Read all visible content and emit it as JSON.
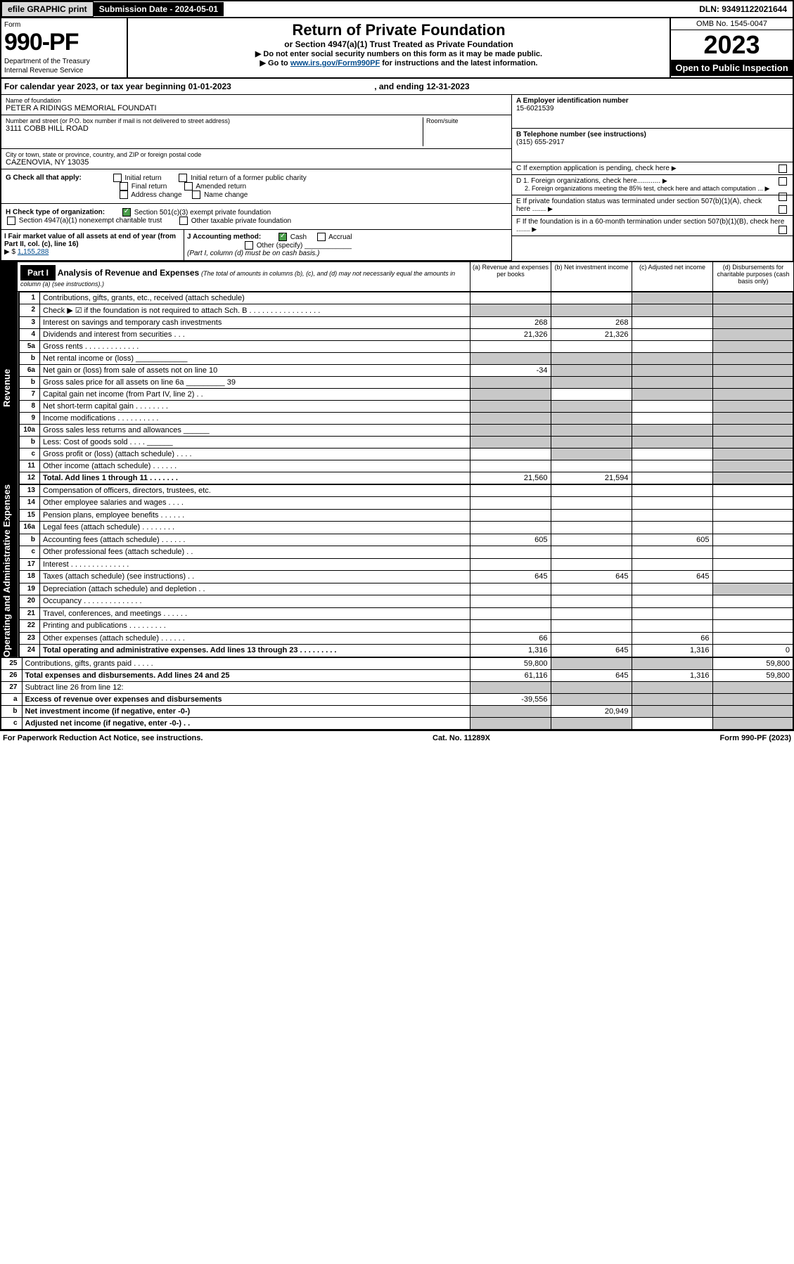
{
  "topbar": {
    "efile": "efile GRAPHIC print",
    "submission": "Submission Date - 2024-05-01",
    "dln": "DLN: 93491122021644"
  },
  "header": {
    "form_word": "Form",
    "form_number": "990-PF",
    "dept1": "Department of the Treasury",
    "dept2": "Internal Revenue Service",
    "title": "Return of Private Foundation",
    "subtitle": "or Section 4947(a)(1) Trust Treated as Private Foundation",
    "instr1": "▶ Do not enter social security numbers on this form as it may be made public.",
    "instr2_pre": "▶ Go to ",
    "instr2_link": "www.irs.gov/Form990PF",
    "instr2_post": " for instructions and the latest information.",
    "omb": "OMB No. 1545-0047",
    "year": "2023",
    "open": "Open to Public Inspection"
  },
  "calyear": {
    "text_pre": "For calendar year 2023, or tax year beginning ",
    "begin": "01-01-2023",
    "text_mid": ", and ending ",
    "end": "12-31-2023"
  },
  "name_block": {
    "lbl": "Name of foundation",
    "val": "PETER A RIDINGS MEMORIAL FOUNDATI"
  },
  "address_block": {
    "lbl": "Number and street (or P.O. box number if mail is not delivered to street address)",
    "val": "3111 COBB HILL ROAD",
    "room_lbl": "Room/suite"
  },
  "city_block": {
    "lbl": "City or town, state or province, country, and ZIP or foreign postal code",
    "val": "CAZENOVIA, NY  13035"
  },
  "ein": {
    "lbl": "A Employer identification number",
    "val": "15-6021539"
  },
  "phone": {
    "lbl": "B Telephone number (see instructions)",
    "val": "(315) 655-2917"
  },
  "c_line": "C If exemption application is pending, check here",
  "d_lines": {
    "d1": "D 1. Foreign organizations, check here............",
    "d2": "2. Foreign organizations meeting the 85% test, check here and attach computation ..."
  },
  "e_line": "E If private foundation status was terminated under section 507(b)(1)(A), check here .......",
  "f_line": "F If the foundation is in a 60-month termination under section 507(b)(1)(B), check here .......",
  "g_line": {
    "label": "G Check all that apply:",
    "opts": [
      "Initial return",
      "Initial return of a former public charity",
      "Final return",
      "Amended return",
      "Address change",
      "Name change"
    ]
  },
  "h_line": {
    "label": "H Check type of organization:",
    "opt1": "Section 501(c)(3) exempt private foundation",
    "opt2": "Section 4947(a)(1) nonexempt charitable trust",
    "opt3": "Other taxable private foundation"
  },
  "i_line": {
    "label": "I Fair market value of all assets at end of year (from Part II, col. (c), line 16)",
    "arrow": "▶ $",
    "val": "1,155,288"
  },
  "j_line": {
    "label": "J Accounting method:",
    "opt1": "Cash",
    "opt2": "Accrual",
    "opt3": "Other (specify)",
    "note": "(Part I, column (d) must be on cash basis.)"
  },
  "part1": {
    "hdr": "Part I",
    "title": "Analysis of Revenue and Expenses",
    "title_note": "(The total of amounts in columns (b), (c), and (d) may not necessarily equal the amounts in column (a) (see instructions).)",
    "col_a": "(a) Revenue and expenses per books",
    "col_b": "(b) Net investment income",
    "col_c": "(c) Adjusted net income",
    "col_d": "(d) Disbursements for charitable purposes (cash basis only)"
  },
  "sidelabels": {
    "revenue": "Revenue",
    "expenses": "Operating and Administrative Expenses"
  },
  "rows": [
    {
      "n": "1",
      "t": "Contributions, gifts, grants, etc., received (attach schedule)",
      "a": "",
      "b": "",
      "c": "shade",
      "d": "shade"
    },
    {
      "n": "2",
      "t": "Check ▶ ☑ if the foundation is not required to attach Sch. B  . . . . . . . . . . . . . . . . .",
      "a": "shade",
      "b": "shade",
      "c": "shade",
      "d": "shade",
      "bold": false
    },
    {
      "n": "3",
      "t": "Interest on savings and temporary cash investments",
      "a": "268",
      "b": "268",
      "c": "",
      "d": "shade"
    },
    {
      "n": "4",
      "t": "Dividends and interest from securities  . . .",
      "a": "21,326",
      "b": "21,326",
      "c": "",
      "d": "shade"
    },
    {
      "n": "5a",
      "t": "Gross rents  . . . . . . . . . . . . .",
      "a": "",
      "b": "",
      "c": "",
      "d": "shade"
    },
    {
      "n": "b",
      "t": "Net rental income or (loss) ____________",
      "a": "shade",
      "b": "shade",
      "c": "shade",
      "d": "shade"
    },
    {
      "n": "6a",
      "t": "Net gain or (loss) from sale of assets not on line 10",
      "a": "-34",
      "b": "shade",
      "c": "shade",
      "d": "shade"
    },
    {
      "n": "b",
      "t": "Gross sales price for all assets on line 6a _________ 39",
      "a": "shade",
      "b": "shade",
      "c": "shade",
      "d": "shade"
    },
    {
      "n": "7",
      "t": "Capital gain net income (from Part IV, line 2)  . .",
      "a": "shade",
      "b": "",
      "c": "shade",
      "d": "shade"
    },
    {
      "n": "8",
      "t": "Net short-term capital gain . . . . . . . .",
      "a": "shade",
      "b": "shade",
      "c": "",
      "d": "shade"
    },
    {
      "n": "9",
      "t": "Income modifications . . . . . . . . . .",
      "a": "shade",
      "b": "shade",
      "c": "",
      "d": "shade"
    },
    {
      "n": "10a",
      "t": "Gross sales less returns and allowances ______",
      "a": "shade",
      "b": "shade",
      "c": "shade",
      "d": "shade"
    },
    {
      "n": "b",
      "t": "Less: Cost of goods sold   . . . . ______",
      "a": "shade",
      "b": "shade",
      "c": "shade",
      "d": "shade"
    },
    {
      "n": "c",
      "t": "Gross profit or (loss) (attach schedule)   . . . .",
      "a": "",
      "b": "shade",
      "c": "",
      "d": "shade"
    },
    {
      "n": "11",
      "t": "Other income (attach schedule)   . . . . . .",
      "a": "",
      "b": "",
      "c": "",
      "d": "shade"
    },
    {
      "n": "12",
      "t": "Total. Add lines 1 through 11  . . . . . . .",
      "a": "21,560",
      "b": "21,594",
      "c": "",
      "d": "shade",
      "bold": true
    },
    {
      "n": "13",
      "t": "Compensation of officers, directors, trustees, etc.",
      "a": "",
      "b": "",
      "c": "",
      "d": ""
    },
    {
      "n": "14",
      "t": "Other employee salaries and wages   . . . .",
      "a": "",
      "b": "",
      "c": "",
      "d": ""
    },
    {
      "n": "15",
      "t": "Pension plans, employee benefits . . . . . .",
      "a": "",
      "b": "",
      "c": "",
      "d": ""
    },
    {
      "n": "16a",
      "t": "Legal fees (attach schedule) . . . . . . . .",
      "a": "",
      "b": "",
      "c": "",
      "d": ""
    },
    {
      "n": "b",
      "t": "Accounting fees (attach schedule) . . . . . .",
      "a": "605",
      "b": "",
      "c": "605",
      "d": ""
    },
    {
      "n": "c",
      "t": "Other professional fees (attach schedule)   . .",
      "a": "",
      "b": "",
      "c": "",
      "d": ""
    },
    {
      "n": "17",
      "t": "Interest . . . . . . . . . . . . . .",
      "a": "",
      "b": "",
      "c": "",
      "d": ""
    },
    {
      "n": "18",
      "t": "Taxes (attach schedule) (see instructions)   . .",
      "a": "645",
      "b": "645",
      "c": "645",
      "d": ""
    },
    {
      "n": "19",
      "t": "Depreciation (attach schedule) and depletion   . .",
      "a": "",
      "b": "",
      "c": "",
      "d": "shade"
    },
    {
      "n": "20",
      "t": "Occupancy . . . . . . . . . . . . . .",
      "a": "",
      "b": "",
      "c": "",
      "d": ""
    },
    {
      "n": "21",
      "t": "Travel, conferences, and meetings . . . . . .",
      "a": "",
      "b": "",
      "c": "",
      "d": ""
    },
    {
      "n": "22",
      "t": "Printing and publications . . . . . . . . .",
      "a": "",
      "b": "",
      "c": "",
      "d": ""
    },
    {
      "n": "23",
      "t": "Other expenses (attach schedule) . . . . . .",
      "a": "66",
      "b": "",
      "c": "66",
      "d": ""
    },
    {
      "n": "24",
      "t": "Total operating and administrative expenses. Add lines 13 through 23  . . . . . . . . .",
      "a": "1,316",
      "b": "645",
      "c": "1,316",
      "d": "0",
      "bold": true
    },
    {
      "n": "25",
      "t": "Contributions, gifts, grants paid   . . . . .",
      "a": "59,800",
      "b": "shade",
      "c": "shade",
      "d": "59,800"
    },
    {
      "n": "26",
      "t": "Total expenses and disbursements. Add lines 24 and 25",
      "a": "61,116",
      "b": "645",
      "c": "1,316",
      "d": "59,800",
      "bold": true
    },
    {
      "n": "27",
      "t": "Subtract line 26 from line 12:",
      "a": "shade",
      "b": "shade",
      "c": "shade",
      "d": "shade"
    },
    {
      "n": "a",
      "t": "Excess of revenue over expenses and disbursements",
      "a": "-39,556",
      "b": "shade",
      "c": "shade",
      "d": "shade",
      "bold": true
    },
    {
      "n": "b",
      "t": "Net investment income (if negative, enter -0-)",
      "a": "shade",
      "b": "20,949",
      "c": "shade",
      "d": "shade",
      "bold": true
    },
    {
      "n": "c",
      "t": "Adjusted net income (if negative, enter -0-)   . .",
      "a": "shade",
      "b": "shade",
      "c": "",
      "d": "shade",
      "bold": true
    }
  ],
  "footer": {
    "left": "For Paperwork Reduction Act Notice, see instructions.",
    "mid": "Cat. No. 11289X",
    "right": "Form 990-PF (2023)"
  },
  "colors": {
    "black": "#000000",
    "shade": "#c8c8c8",
    "link": "#004b8d",
    "check_green": "#4a9d4a"
  }
}
